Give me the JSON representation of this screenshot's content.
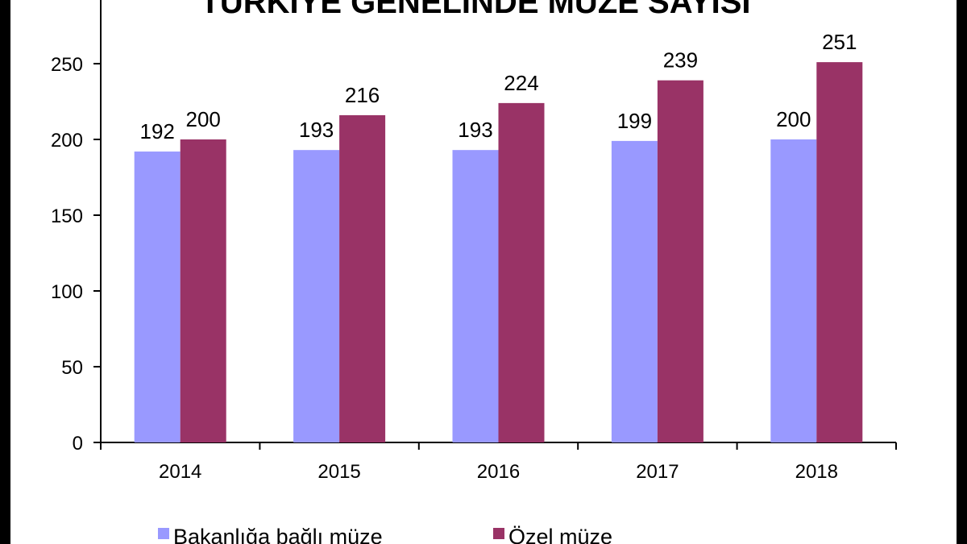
{
  "chart_data": {
    "type": "bar",
    "title": "TÜRKİYE GENELİNDE MÜZE SAYISI",
    "categories": [
      "2014",
      "2015",
      "2016",
      "2017",
      "2018"
    ],
    "series": [
      {
        "name": "Bakanlığa bağlı  müze",
        "values": [
          192,
          193,
          193,
          199,
          200
        ],
        "color": "#9999ff"
      },
      {
        "name": "Özel müze",
        "values": [
          200,
          216,
          224,
          239,
          251
        ],
        "color": "#993366"
      }
    ],
    "xlabel": "",
    "ylabel": "",
    "ylim": [
      0,
      300
    ],
    "yticks": [
      "0",
      "50",
      "100",
      "150",
      "200",
      "250"
    ],
    "grid": false,
    "legend": "bottom"
  }
}
